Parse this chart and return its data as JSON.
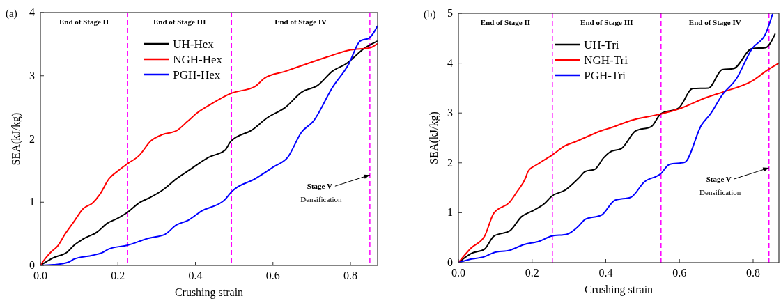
{
  "chart_data": [
    {
      "type": "line",
      "title": "(a)",
      "xlabel": "Crushing strain",
      "ylabel": "SEA(kJ/kg)",
      "xlim": [
        0,
        0.87
      ],
      "xticks": [
        {
          "value": 0,
          "label": "0.0"
        },
        0.2,
        0.4,
        0.6,
        0.8
      ],
      "ylim": [
        0,
        4
      ],
      "yticks": [
        0,
        1,
        2,
        3,
        4
      ],
      "legend": "top",
      "line_style": "solid",
      "series": [
        {
          "name": "UH-Hex",
          "color": "#000000",
          "x": [
            0,
            0.033,
            0.069,
            0.087,
            0.111,
            0.147,
            0.171,
            0.201,
            0.225,
            0.255,
            0.285,
            0.315,
            0.351,
            0.387,
            0.434,
            0.476,
            0.491,
            0.548,
            0.584,
            0.632,
            0.674,
            0.716,
            0.753,
            0.789,
            0.837,
            0.87
          ],
          "values": [
            0,
            0.12,
            0.21,
            0.32,
            0.42,
            0.53,
            0.66,
            0.75,
            0.84,
            0.99,
            1.08,
            1.19,
            1.37,
            1.52,
            1.71,
            1.82,
            1.96,
            2.15,
            2.33,
            2.5,
            2.74,
            2.85,
            3.07,
            3.19,
            3.44,
            3.55
          ]
        },
        {
          "name": "NGH-Hex",
          "color": "#ff0000",
          "x": [
            0,
            0.009,
            0.027,
            0.045,
            0.063,
            0.084,
            0.111,
            0.135,
            0.153,
            0.177,
            0.201,
            0.225,
            0.255,
            0.285,
            0.315,
            0.351,
            0.38,
            0.404,
            0.44,
            0.491,
            0.554,
            0.578,
            0.632,
            0.674,
            0.741,
            0.801,
            0.849,
            0.87
          ],
          "values": [
            0,
            0.08,
            0.21,
            0.31,
            0.49,
            0.67,
            0.9,
            0.99,
            1.12,
            1.37,
            1.5,
            1.61,
            1.74,
            1.97,
            2.07,
            2.13,
            2.28,
            2.41,
            2.55,
            2.72,
            2.83,
            2.96,
            3.07,
            3.16,
            3.3,
            3.41,
            3.44,
            3.51
          ]
        },
        {
          "name": "PGH-Hex",
          "color": "#0000ff",
          "x": [
            0,
            0.033,
            0.072,
            0.087,
            0.135,
            0.159,
            0.177,
            0.225,
            0.279,
            0.321,
            0.351,
            0.38,
            0.416,
            0.476,
            0.494,
            0.554,
            0.602,
            0.638,
            0.674,
            0.704,
            0.753,
            0.795,
            0.825,
            0.849,
            0.87
          ],
          "values": [
            0,
            0.01,
            0.05,
            0.1,
            0.16,
            0.2,
            0.26,
            0.32,
            0.43,
            0.49,
            0.64,
            0.71,
            0.86,
            1.04,
            1.17,
            1.37,
            1.56,
            1.71,
            2.11,
            2.28,
            2.81,
            3.18,
            3.55,
            3.6,
            3.79
          ]
        }
      ],
      "ref_lines": [
        {
          "axis": "x",
          "value": 0.225,
          "color": "#ff00ff",
          "line_style": "dashed"
        },
        {
          "axis": "x",
          "value": 0.493,
          "color": "#ff00ff",
          "line_style": "dashed"
        },
        {
          "axis": "x",
          "value": 0.85,
          "color": "#ff00ff",
          "line_style": "dashed"
        }
      ],
      "annotations": [
        "End of Stage II",
        "End of Stage III",
        "End of Stage IV",
        {
          "text": "Stage V",
          "x": 0.85,
          "y": 1.43
        },
        "Densification"
      ]
    },
    {
      "type": "line",
      "title": "(b)",
      "xlabel": "Crushing strain",
      "ylabel": "SEA(kJ/kg)",
      "xlim": [
        0,
        0.87
      ],
      "xticks": [
        {
          "value": 0,
          "label": "0.0"
        },
        0.2,
        0.4,
        0.6,
        0.8
      ],
      "ylim": [
        0,
        5
      ],
      "yticks": [
        0,
        1,
        2,
        3,
        4,
        5
      ],
      "legend": "top",
      "line_style": "solid",
      "series": [
        {
          "name": "UH-Tri",
          "color": "#000000",
          "x": [
            0,
            0.034,
            0.071,
            0.096,
            0.14,
            0.171,
            0.202,
            0.233,
            0.255,
            0.289,
            0.326,
            0.345,
            0.37,
            0.394,
            0.412,
            0.443,
            0.481,
            0.524,
            0.549,
            0.598,
            0.636,
            0.679,
            0.716,
            0.747,
            0.797,
            0.834,
            0.86
          ],
          "values": [
            0,
            0.18,
            0.27,
            0.53,
            0.64,
            0.92,
            1.04,
            1.18,
            1.34,
            1.45,
            1.69,
            1.83,
            1.87,
            2.1,
            2.22,
            2.29,
            2.64,
            2.73,
            2.98,
            3.1,
            3.49,
            3.5,
            3.87,
            3.89,
            4.29,
            4.31,
            4.59
          ]
        },
        {
          "name": "NGH-Tri",
          "color": "#ff0000",
          "x": [
            0,
            0.034,
            0.071,
            0.096,
            0.14,
            0.158,
            0.183,
            0.189,
            0.214,
            0.255,
            0.289,
            0.32,
            0.363,
            0.394,
            0.412,
            0.468,
            0.549,
            0.598,
            0.673,
            0.722,
            0.797,
            0.841,
            0.87
          ],
          "values": [
            0,
            0.29,
            0.53,
            0.99,
            1.22,
            1.41,
            1.71,
            1.83,
            1.97,
            2.16,
            2.34,
            2.43,
            2.57,
            2.66,
            2.7,
            2.85,
            2.98,
            3.08,
            3.31,
            3.43,
            3.64,
            3.87,
            4
          ]
        },
        {
          "name": "PGH-Tri",
          "color": "#0000ff",
          "x": [
            0,
            0.028,
            0.071,
            0.096,
            0.14,
            0.177,
            0.22,
            0.252,
            0.295,
            0.326,
            0.345,
            0.388,
            0.425,
            0.468,
            0.505,
            0.549,
            0.573,
            0.614,
            0.66,
            0.685,
            0.716,
            0.754,
            0.797,
            0.834,
            0.853
          ],
          "values": [
            0,
            0.06,
            0.12,
            0.2,
            0.25,
            0.36,
            0.43,
            0.53,
            0.57,
            0.73,
            0.87,
            0.95,
            1.25,
            1.31,
            1.62,
            1.78,
            1.97,
            2.01,
            2.76,
            2.99,
            3.36,
            3.68,
            4.29,
            4.59,
            4.99
          ]
        }
      ],
      "ref_lines": [
        {
          "axis": "x",
          "value": 0.255,
          "color": "#ff00ff",
          "line_style": "dashed"
        },
        {
          "axis": "x",
          "value": 0.55,
          "color": "#ff00ff",
          "line_style": "dashed"
        },
        {
          "axis": "x",
          "value": 0.843,
          "color": "#ff00ff",
          "line_style": "dashed"
        }
      ],
      "annotations": [
        "End of Stage II",
        "End of Stage III",
        "End of Stage IV",
        {
          "text": "Stage V",
          "x": 0.843,
          "y": 1.9
        },
        "Densification"
      ]
    }
  ]
}
